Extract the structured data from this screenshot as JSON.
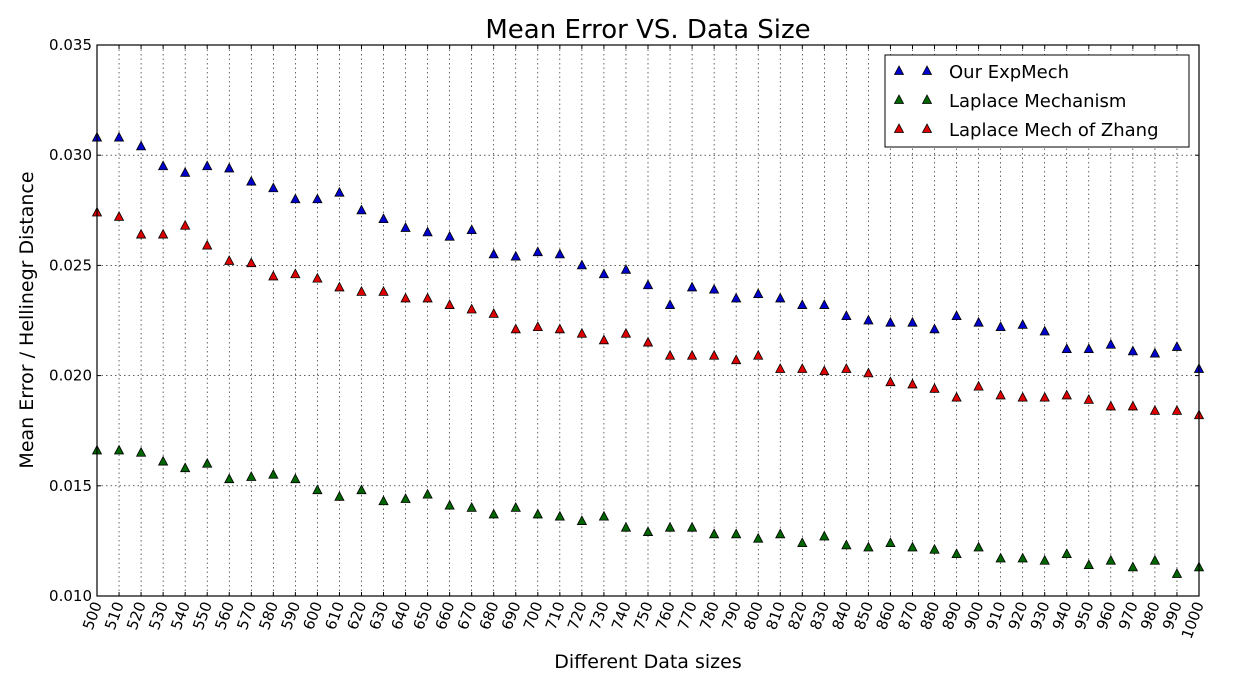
{
  "chart_data": {
    "type": "scatter",
    "title": "Mean Error VS. Data Size",
    "xlabel": "Different Data sizes",
    "ylabel": "Mean Error / Hellinegr Distance",
    "xlim": [
      500,
      1000
    ],
    "ylim": [
      0.01,
      0.035
    ],
    "grid": true,
    "legend_position": "top-right",
    "x": [
      500,
      510,
      520,
      530,
      540,
      550,
      560,
      570,
      580,
      590,
      600,
      610,
      620,
      630,
      640,
      650,
      660,
      670,
      680,
      690,
      700,
      710,
      720,
      730,
      740,
      750,
      760,
      770,
      780,
      790,
      800,
      810,
      820,
      830,
      840,
      850,
      860,
      870,
      880,
      890,
      900,
      910,
      920,
      930,
      940,
      950,
      960,
      970,
      980,
      990,
      1000
    ],
    "x_tick_labels": [
      "500",
      "510",
      "520",
      "530",
      "540",
      "550",
      "560",
      "570",
      "580",
      "590",
      "600",
      "610",
      "620",
      "630",
      "640",
      "650",
      "660",
      "670",
      "680",
      "690",
      "700",
      "710",
      "720",
      "730",
      "740",
      "750",
      "760",
      "770",
      "780",
      "790",
      "800",
      "810",
      "820",
      "830",
      "840",
      "850",
      "860",
      "870",
      "880",
      "890",
      "900",
      "910",
      "920",
      "930",
      "940",
      "950",
      "960",
      "970",
      "980",
      "990",
      "1000"
    ],
    "y_ticks": [
      0.01,
      0.015,
      0.02,
      0.025,
      0.03,
      0.035
    ],
    "y_tick_labels": [
      "0.010",
      "0.015",
      "0.020",
      "0.025",
      "0.030",
      "0.035"
    ],
    "series": [
      {
        "name": "Our ExpMech",
        "color": "#0000cc",
        "marker": "triangle",
        "values": [
          0.0308,
          0.0308,
          0.0304,
          0.0295,
          0.0292,
          0.0295,
          0.0294,
          0.0288,
          0.0285,
          0.028,
          0.028,
          0.0283,
          0.0275,
          0.0271,
          0.0267,
          0.0265,
          0.0263,
          0.0266,
          0.0255,
          0.0254,
          0.0256,
          0.0255,
          0.025,
          0.0246,
          0.0248,
          0.0241,
          0.0232,
          0.024,
          0.0239,
          0.0235,
          0.0237,
          0.0235,
          0.0232,
          0.0232,
          0.0227,
          0.0225,
          0.0224,
          0.0224,
          0.0221,
          0.0227,
          0.0224,
          0.0222,
          0.0223,
          0.022,
          0.0212,
          0.0212,
          0.0214,
          0.0211,
          0.021,
          0.0213,
          0.0203
        ]
      },
      {
        "name": "Laplace Mechanism",
        "color": "#006400",
        "marker": "triangle",
        "values": [
          0.0166,
          0.0166,
          0.0165,
          0.0161,
          0.0158,
          0.016,
          0.0153,
          0.0154,
          0.0155,
          0.0153,
          0.0148,
          0.0145,
          0.0148,
          0.0143,
          0.0144,
          0.0146,
          0.0141,
          0.014,
          0.0137,
          0.014,
          0.0137,
          0.0136,
          0.0134,
          0.0136,
          0.0131,
          0.0129,
          0.0131,
          0.0131,
          0.0128,
          0.0128,
          0.0126,
          0.0128,
          0.0124,
          0.0127,
          0.0123,
          0.0122,
          0.0124,
          0.0122,
          0.0121,
          0.0119,
          0.0122,
          0.0117,
          0.0117,
          0.0116,
          0.0119,
          0.0114,
          0.0116,
          0.0113,
          0.0116,
          0.011,
          0.0113
        ]
      },
      {
        "name": "Laplace Mech of Zhang",
        "color": "#dd0000",
        "marker": "triangle",
        "values": [
          0.0274,
          0.0272,
          0.0264,
          0.0264,
          0.0268,
          0.0259,
          0.0252,
          0.0251,
          0.0245,
          0.0246,
          0.0244,
          0.024,
          0.0238,
          0.0238,
          0.0235,
          0.0235,
          0.0232,
          0.023,
          0.0228,
          0.0221,
          0.0222,
          0.0221,
          0.0219,
          0.0216,
          0.0219,
          0.0215,
          0.0209,
          0.0209,
          0.0209,
          0.0207,
          0.0209,
          0.0203,
          0.0203,
          0.0202,
          0.0203,
          0.0201,
          0.0197,
          0.0196,
          0.0194,
          0.019,
          0.0195,
          0.0191,
          0.019,
          0.019,
          0.0191,
          0.0189,
          0.0186,
          0.0186,
          0.0184,
          0.0184,
          0.0182
        ]
      }
    ]
  }
}
